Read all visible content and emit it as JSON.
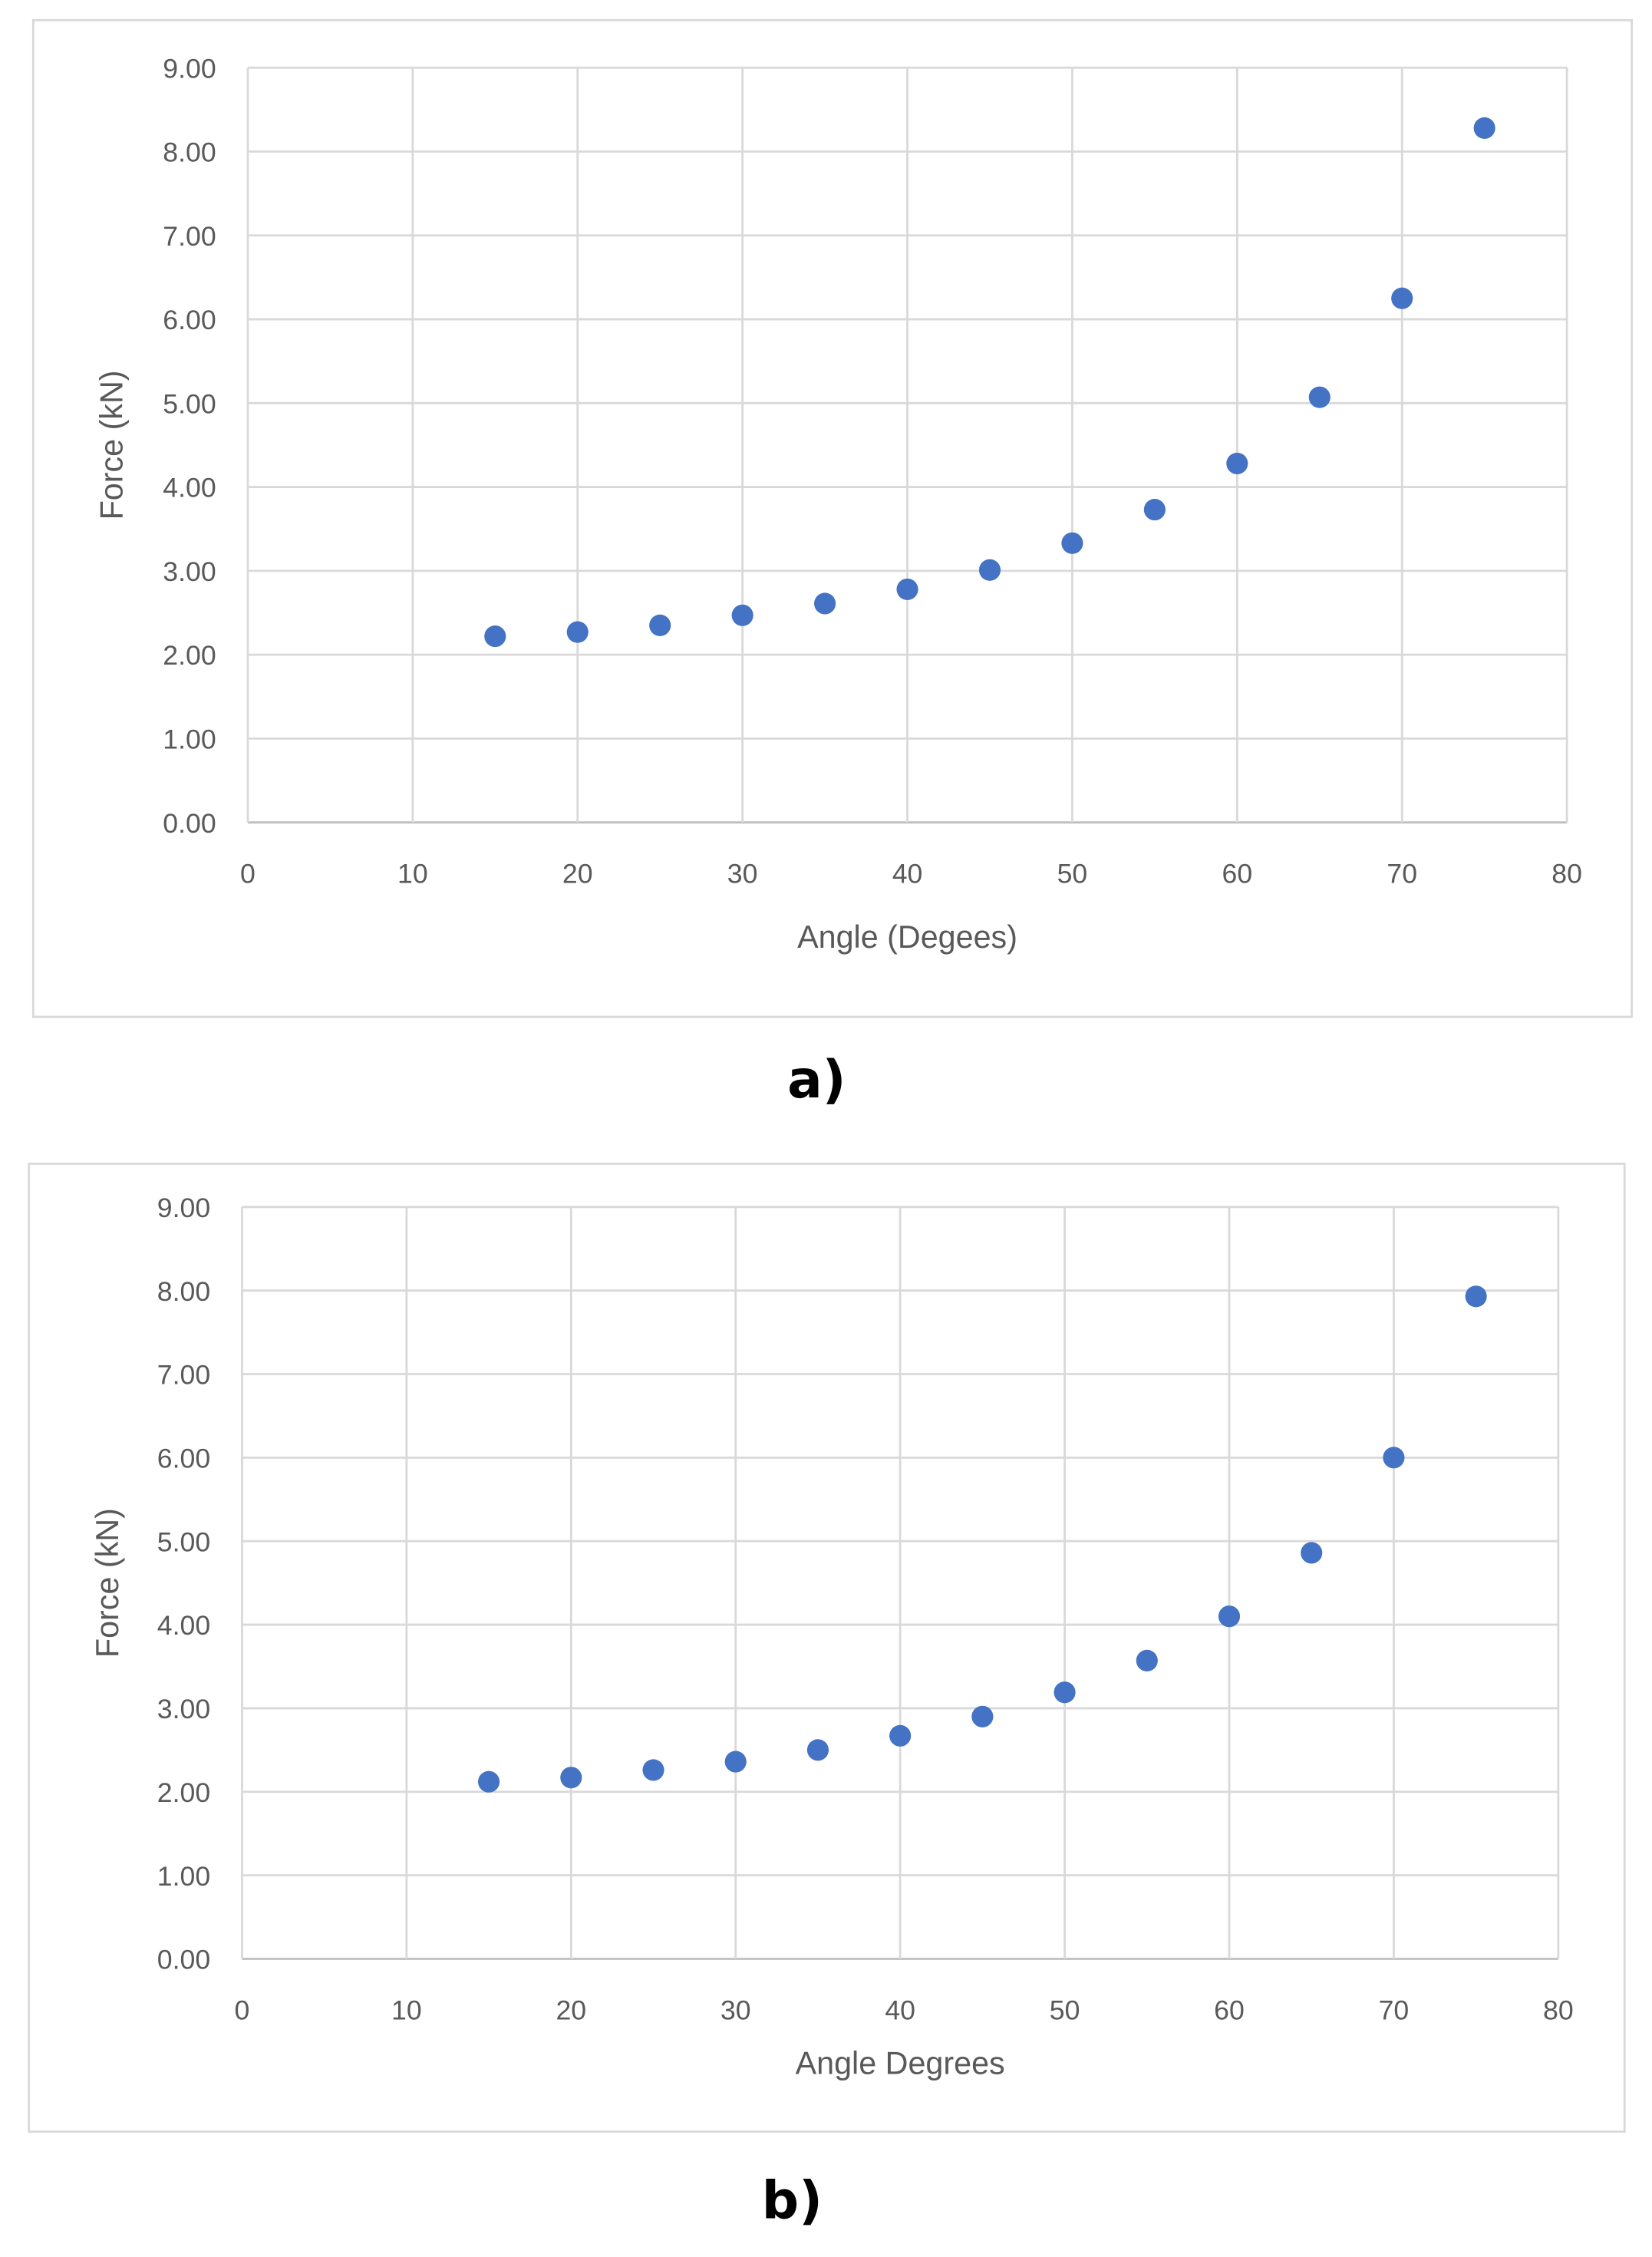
{
  "chart_data": [
    {
      "type": "scatter",
      "caption": "a)",
      "xlabel": "Angle (Degees)",
      "ylabel": "Force (kN)",
      "xlim": [
        0,
        80
      ],
      "ylim": [
        0,
        9
      ],
      "xticks": [
        "0",
        "10",
        "20",
        "30",
        "40",
        "50",
        "60",
        "70",
        "80"
      ],
      "yticks": [
        "0.00",
        "1.00",
        "2.00",
        "3.00",
        "4.00",
        "5.00",
        "6.00",
        "7.00",
        "8.00",
        "9.00"
      ],
      "grid": true,
      "legend": "none",
      "color": "#4472C4",
      "x": [
        15,
        20,
        25,
        30,
        35,
        40,
        45,
        50,
        55,
        60,
        65,
        70,
        75
      ],
      "y": [
        2.22,
        2.27,
        2.35,
        2.47,
        2.61,
        2.78,
        3.01,
        3.33,
        3.73,
        4.28,
        5.07,
        6.25,
        8.28
      ]
    },
    {
      "type": "scatter",
      "caption": "b)",
      "xlabel": "Angle Degrees",
      "ylabel": "Force (kN)",
      "xlim": [
        0,
        80
      ],
      "ylim": [
        0,
        9
      ],
      "xticks": [
        "0",
        "10",
        "20",
        "30",
        "40",
        "50",
        "60",
        "70",
        "80"
      ],
      "yticks": [
        "0.00",
        "1.00",
        "2.00",
        "3.00",
        "4.00",
        "5.00",
        "6.00",
        "7.00",
        "8.00",
        "9.00"
      ],
      "grid": true,
      "legend": "none",
      "color": "#4472C4",
      "x": [
        15,
        20,
        25,
        30,
        35,
        40,
        45,
        50,
        55,
        60,
        65,
        70,
        75
      ],
      "y": [
        2.12,
        2.17,
        2.26,
        2.36,
        2.5,
        2.67,
        2.9,
        3.19,
        3.57,
        4.1,
        4.86,
        6.0,
        7.93
      ]
    }
  ]
}
